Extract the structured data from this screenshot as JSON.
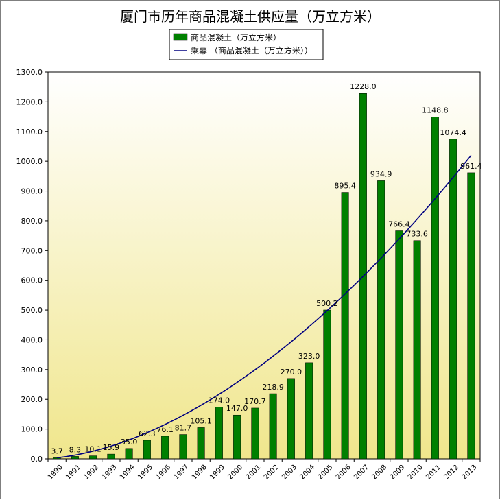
{
  "chart_data": {
    "type": "bar",
    "title": "厦门市历年商品混凝土供应量（万立方米）",
    "categories": [
      "1990",
      "1991",
      "1992",
      "1993",
      "1994",
      "1995",
      "1996",
      "1997",
      "1998",
      "1999",
      "2000",
      "2001",
      "2002",
      "2003",
      "2004",
      "2005",
      "2006",
      "2007",
      "2008",
      "2009",
      "2010",
      "2011",
      "2012",
      "2013"
    ],
    "values": [
      3.7,
      8.3,
      10.1,
      15.9,
      35.0,
      62.3,
      76.1,
      81.7,
      105.1,
      174.0,
      147.0,
      170.7,
      218.9,
      270.0,
      323.0,
      500.2,
      895.4,
      1228.0,
      934.9,
      766.4,
      733.6,
      1148.8,
      1074.4,
      961.4
    ],
    "data_labels": [
      "3.7",
      "8.3",
      "10.1",
      "15.9",
      "35.0",
      "62.3",
      "76.1",
      "81.7",
      "105.1",
      "174.0",
      "147.0",
      "170.7",
      "218.9",
      "270.0",
      "323.0",
      "500.2",
      "895.4",
      "1228.0",
      "934.9",
      "766.4",
      "733.6",
      "1148.8",
      "1074.4",
      "961.4"
    ],
    "series": [
      {
        "name": "商品混凝土（万立方米）",
        "type": "bar",
        "color": "#008000"
      },
      {
        "name": "乘幂 （商品混凝土（万立方米））",
        "type": "line",
        "color": "#000080"
      }
    ],
    "trendline": {
      "type": "power",
      "start": 3.7,
      "end": 1020
    },
    "ylim": [
      0,
      1300
    ],
    "yticks": [
      0,
      100,
      200,
      300,
      400,
      500,
      600,
      700,
      800,
      900,
      1000,
      1100,
      1200,
      1300
    ],
    "ytick_labels": [
      "0.0",
      "100.0",
      "200.0",
      "300.0",
      "400.0",
      "500.0",
      "600.0",
      "700.0",
      "800.0",
      "900.0",
      "1000.0",
      "1100.0",
      "1200.0",
      "1300.0"
    ],
    "legend": "top-center",
    "grid": false,
    "plot_background": {
      "top": "#ffffff",
      "bottom": "#f0e68c"
    }
  }
}
